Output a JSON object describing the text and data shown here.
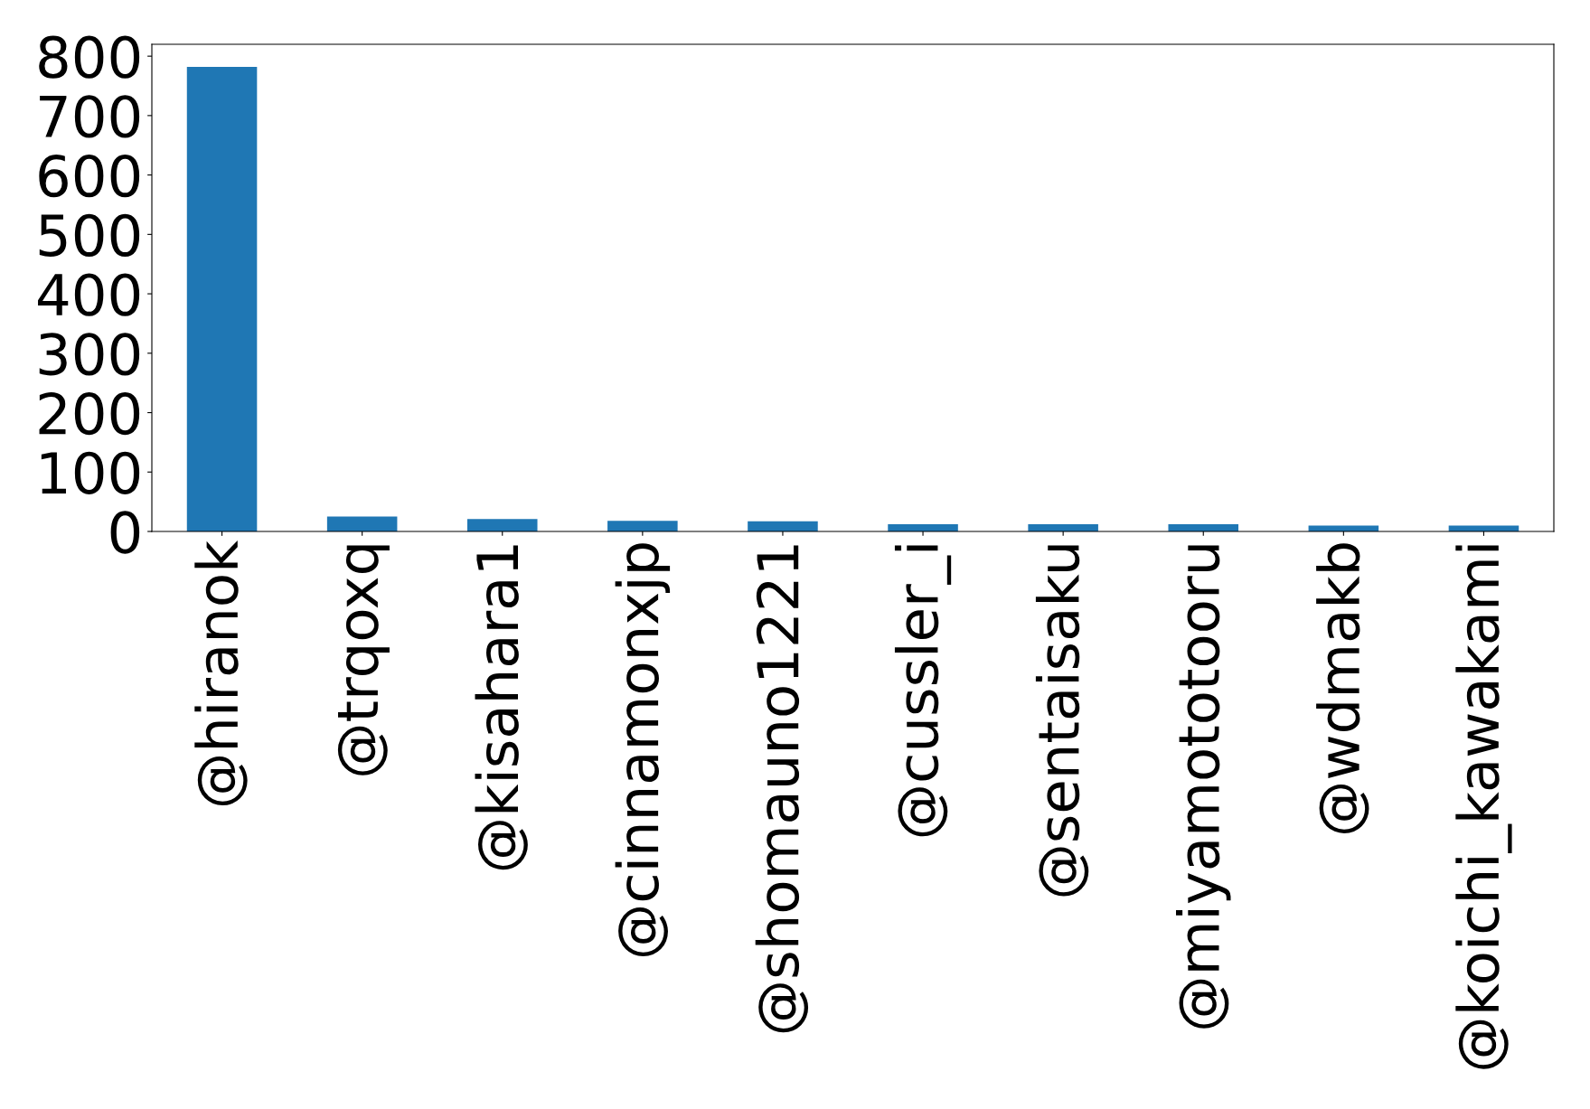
{
  "chart_data": {
    "type": "bar",
    "categories": [
      "@hiranok",
      "@trqoxq",
      "@kisahara1",
      "@cinnamonxjp",
      "@shomauno1221",
      "@cussler_i",
      "@sentaisaku",
      "@miyamototooru",
      "@wdmakb",
      "@koichi_kawakami"
    ],
    "values": [
      782,
      25,
      21,
      18,
      17,
      12,
      12,
      12,
      10,
      10
    ],
    "color": "#1f77b4",
    "ylim": [
      0,
      820
    ],
    "yticks": [
      0,
      100,
      200,
      300,
      400,
      500,
      600,
      700,
      800
    ],
    "grid": false,
    "legend": false
  }
}
